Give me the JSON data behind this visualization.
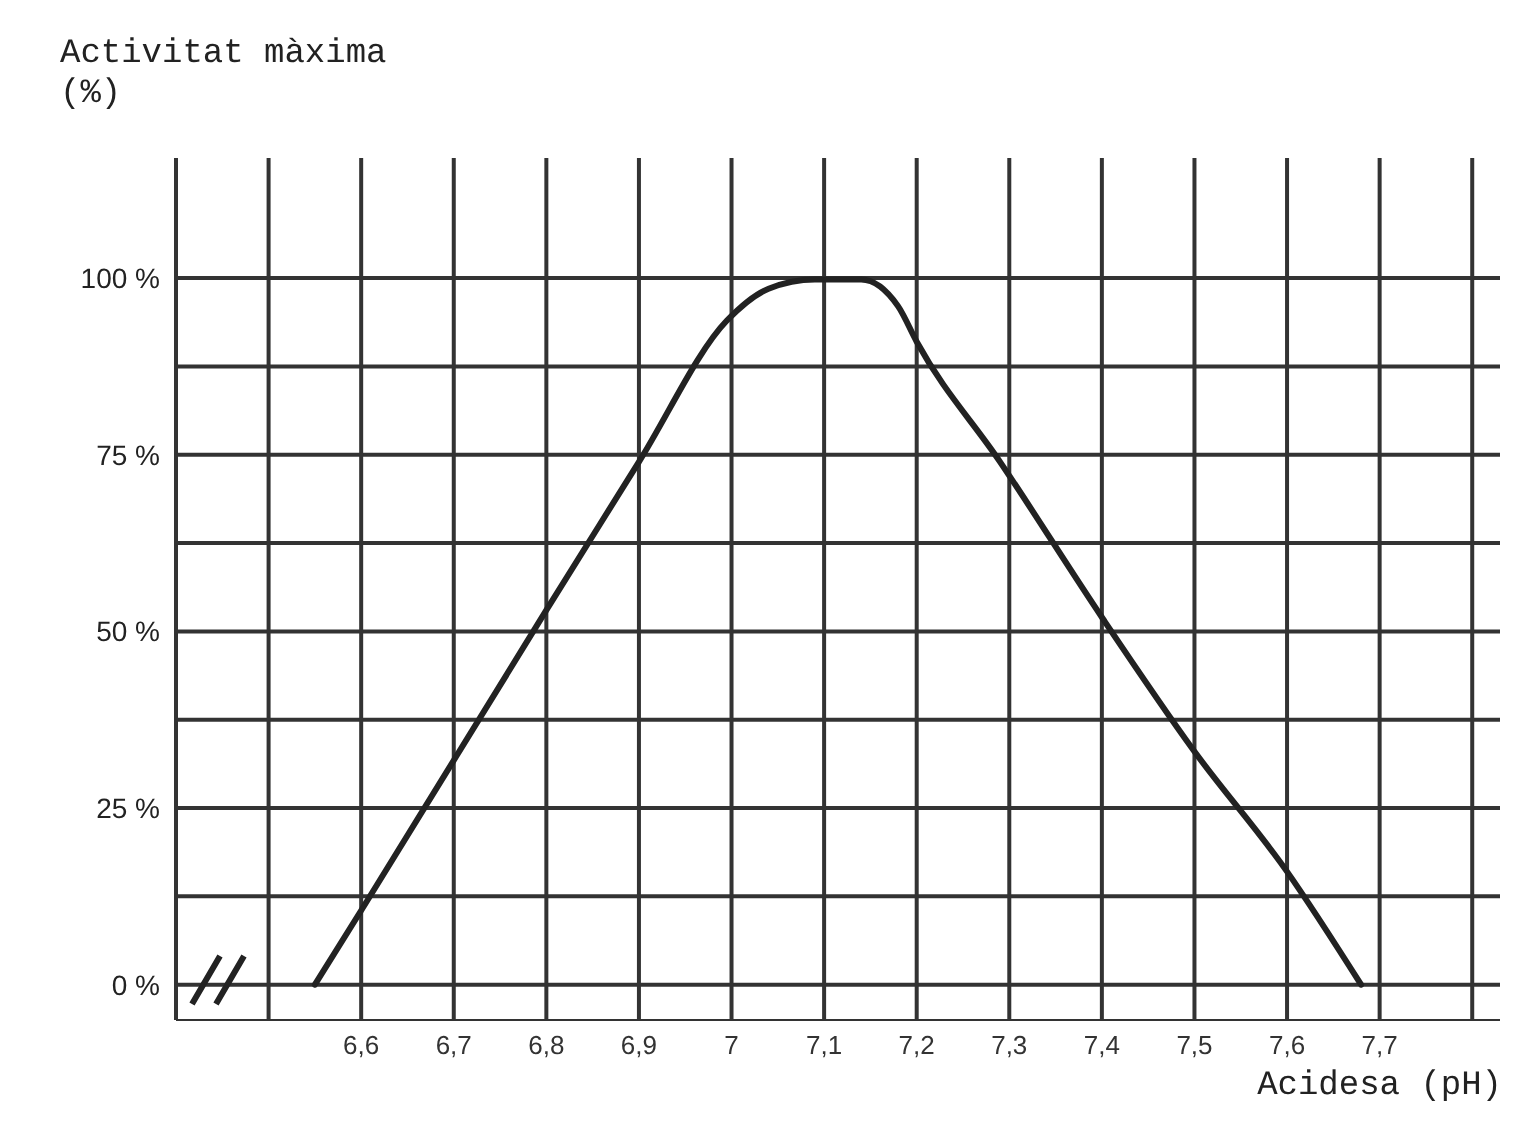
{
  "chart_data": {
    "type": "line",
    "ylabel": "Activitat màxima (%)",
    "xlabel": "Acidesa (pH)",
    "x": [
      6.55,
      6.6,
      6.8,
      6.9,
      6.995,
      7.04,
      7.09,
      7.14,
      7.18,
      7.2,
      7.29,
      7.4,
      7.5,
      7.6,
      7.68
    ],
    "series": [
      {
        "color": "#222222",
        "values": [
          0,
          10.5,
          53,
          74,
          94,
          98.5,
          99.8,
          99.8,
          96,
          91,
          74,
          52,
          33,
          16,
          0
        ]
      }
    ],
    "xlim": [
      6.4,
      7.83
    ],
    "ylim": [
      -5,
      117
    ],
    "xticks": [
      {
        "value": 6.4,
        "label": null
      },
      {
        "value": 6.5,
        "label": null
      },
      {
        "value": 6.6,
        "label": "6,6"
      },
      {
        "value": 6.7,
        "label": "6,7"
      },
      {
        "value": 6.8,
        "label": "6,8"
      },
      {
        "value": 6.9,
        "label": "6,9"
      },
      {
        "value": 7,
        "label": "7"
      },
      {
        "value": 7.1,
        "label": "7,1"
      },
      {
        "value": 7.2,
        "label": "7,2"
      },
      {
        "value": 7.3,
        "label": "7,3"
      },
      {
        "value": 7.4,
        "label": "7,4"
      },
      {
        "value": 7.5,
        "label": "7,5"
      },
      {
        "value": 7.6,
        "label": "7,6"
      },
      {
        "value": 7.7,
        "label": "7,7"
      },
      {
        "value": 7.8,
        "label": null
      }
    ],
    "yticks": [
      {
        "value": 0,
        "label": "0 %"
      },
      {
        "value": 12.5,
        "label": null
      },
      {
        "value": 25,
        "label": "25 %"
      },
      {
        "value": 37.5,
        "label": null
      },
      {
        "value": 50,
        "label": "50 %"
      },
      {
        "value": 62.5,
        "label": null
      },
      {
        "value": 75,
        "label": "75 %"
      },
      {
        "value": 87.5,
        "label": null
      },
      {
        "value": 100,
        "label": "100 %"
      }
    ],
    "grid": true,
    "marker": "none",
    "line_style": "solid"
  }
}
